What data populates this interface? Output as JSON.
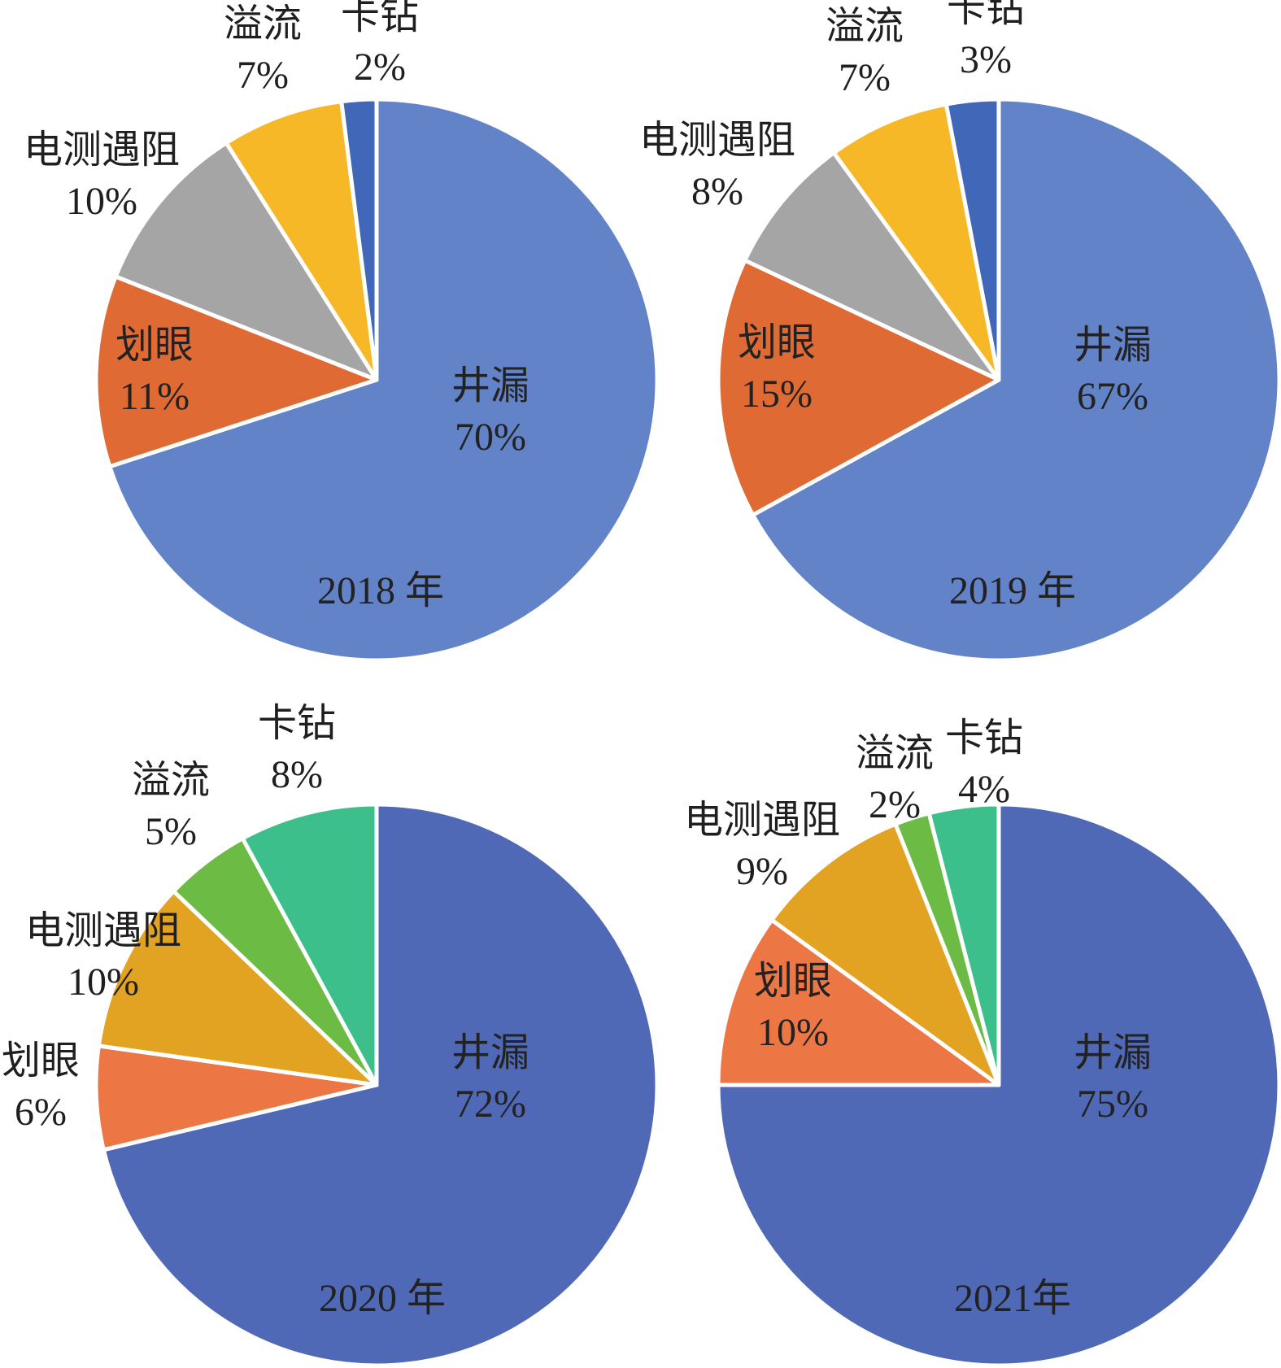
{
  "colors": {
    "outline": "#ffffff",
    "text": "#1f1f1f"
  },
  "chart_data": [
    {
      "type": "pie",
      "title": "2018 年",
      "slices": [
        {
          "label": "井漏",
          "pct": "70%",
          "value": 70,
          "color": "#6383c9"
        },
        {
          "label": "划眼",
          "pct": "11%",
          "value": 11,
          "color": "#df6a34"
        },
        {
          "label": "电测遇阻",
          "pct": "10%",
          "value": 10,
          "color": "#a5a5a5"
        },
        {
          "label": "溢流",
          "pct": "7%",
          "value": 7,
          "color": "#f7b828"
        },
        {
          "label": "卡钻",
          "pct": "2%",
          "value": 2,
          "color": "#4168b8"
        }
      ]
    },
    {
      "type": "pie",
      "title": "2019 年",
      "slices": [
        {
          "label": "井漏",
          "pct": "67%",
          "value": 67,
          "color": "#6383c9"
        },
        {
          "label": "划眼",
          "pct": "15%",
          "value": 15,
          "color": "#df6a34"
        },
        {
          "label": "电测遇阻",
          "pct": "8%",
          "value": 8,
          "color": "#a5a5a5"
        },
        {
          "label": "溢流",
          "pct": "7%",
          "value": 7,
          "color": "#f7b828"
        },
        {
          "label": "卡钻",
          "pct": "3%",
          "value": 3,
          "color": "#4168b8"
        }
      ]
    },
    {
      "type": "pie",
      "title": "2020 年",
      "slices": [
        {
          "label": "井漏",
          "pct": "72%",
          "value": 72,
          "color": "#5069b6"
        },
        {
          "label": "划眼",
          "pct": "6%",
          "value": 6,
          "color": "#ec7744"
        },
        {
          "label": "电测遇阻",
          "pct": "10%",
          "value": 10,
          "color": "#e2a322"
        },
        {
          "label": "溢流",
          "pct": "5%",
          "value": 5,
          "color": "#6cbb45"
        },
        {
          "label": "卡钻",
          "pct": "8%",
          "value": 8,
          "color": "#3dbf8c"
        }
      ]
    },
    {
      "type": "pie",
      "title": "2021年",
      "slices": [
        {
          "label": "井漏",
          "pct": "75%",
          "value": 75,
          "color": "#5069b6"
        },
        {
          "label": "划眼",
          "pct": "10%",
          "value": 10,
          "color": "#ec7744"
        },
        {
          "label": "电测遇阻",
          "pct": "9%",
          "value": 9,
          "color": "#e2a322"
        },
        {
          "label": "溢流",
          "pct": "2%",
          "value": 2,
          "color": "#6cbb45"
        },
        {
          "label": "卡钻",
          "pct": "4%",
          "value": 4,
          "color": "#3dbf8c"
        }
      ]
    }
  ]
}
